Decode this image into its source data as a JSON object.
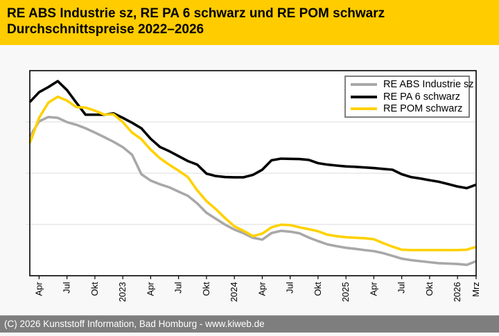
{
  "header": {
    "title_line1": "RE ABS Industrie sz, RE PA 6 schwarz und RE POM schwarz",
    "title_line2": "Durchschnittspreise 2022–2026",
    "background": "#FFCC00",
    "text_color": "#000000"
  },
  "legend": {
    "entries": [
      {
        "label": "RE ABS Industrie sz",
        "color": "#A8A8A8"
      },
      {
        "label": "RE PA 6 schwarz",
        "color": "#000000"
      },
      {
        "label": "RE POM schwarz",
        "color": "#FFD100"
      }
    ]
  },
  "chart_data": {
    "type": "line",
    "title": "RE ABS Industrie sz, RE PA 6 schwarz und RE POM schwarz — Durchschnittspreise 2022–2026",
    "x_start_month": "Mrz 2022",
    "x_end_month": "Mrz 2026",
    "x_interval": "monthly",
    "x_tick_labels": [
      "Apr",
      "Jul",
      "Okt",
      "2023",
      "Apr",
      "Jul",
      "Okt",
      "2024",
      "Apr",
      "Jul",
      "Okt",
      "2025",
      "Apr",
      "Jul",
      "Okt",
      "2026",
      "Mrz"
    ],
    "x_tick_month_indices": [
      1,
      4,
      7,
      10,
      13,
      16,
      19,
      22,
      25,
      28,
      31,
      34,
      37,
      40,
      43,
      46,
      48
    ],
    "y_axis_labels_visible": false,
    "y_scale_note": "relative scale 0-100 (source chart shows no y-axis value labels)",
    "ylim": [
      0,
      100
    ],
    "gridlines_rel": [
      25,
      50,
      75
    ],
    "grid_color": "#DBDBDB",
    "plot_background": "#FFFFFF",
    "series": [
      {
        "name": "RE ABS Industrie sz",
        "color": "#A8A8A8",
        "values": [
          67.8,
          75.3,
          77.4,
          77.0,
          74.9,
          73.6,
          71.9,
          69.8,
          67.6,
          65.3,
          62.7,
          59.0,
          49.5,
          46.4,
          44.6,
          43.1,
          41.0,
          39.0,
          35.3,
          30.7,
          27.8,
          24.9,
          22.5,
          20.7,
          18.5,
          17.6,
          20.8,
          21.9,
          21.5,
          20.7,
          18.6,
          16.9,
          15.3,
          14.4,
          13.6,
          13.1,
          12.5,
          12.0,
          11.0,
          9.7,
          8.3,
          7.6,
          7.1,
          6.6,
          6.1,
          5.9,
          5.7,
          5.3,
          7.1
        ]
      },
      {
        "name": "RE PA 6 schwarz",
        "color": "#000000",
        "values": [
          84.7,
          89.5,
          92.0,
          94.9,
          90.5,
          84.4,
          78.5,
          78.5,
          78.5,
          79.2,
          77.0,
          74.6,
          71.9,
          66.8,
          62.8,
          60.7,
          58.3,
          55.9,
          54.2,
          49.8,
          48.6,
          48.1,
          48.0,
          48.0,
          49.2,
          51.7,
          56.3,
          57.1,
          57.0,
          56.9,
          56.5,
          54.9,
          54.2,
          53.7,
          53.3,
          53.1,
          52.8,
          52.5,
          52.1,
          51.7,
          49.5,
          48.1,
          47.4,
          46.6,
          45.8,
          44.7,
          43.5,
          42.7,
          44.4
        ]
      },
      {
        "name": "RE POM schwarz",
        "color": "#FFD100",
        "values": [
          64.7,
          77.0,
          84.4,
          87.3,
          85.4,
          82.2,
          82.0,
          80.5,
          78.6,
          78.7,
          74.9,
          69.8,
          66.6,
          61.5,
          57.3,
          54.1,
          51.2,
          48.1,
          41.7,
          36.4,
          32.5,
          28.1,
          24.1,
          21.9,
          19.3,
          20.5,
          23.6,
          24.9,
          24.7,
          23.6,
          22.7,
          21.7,
          20.0,
          19.3,
          18.8,
          18.5,
          18.3,
          17.8,
          15.9,
          14.2,
          12.7,
          12.5,
          12.5,
          12.5,
          12.5,
          12.5,
          12.5,
          12.7,
          14.1
        ]
      }
    ]
  },
  "footer": {
    "text": "(C) 2026 Kunststoff Information, Bad Homburg - www.kiweb.de",
    "background": "#7E7E7E",
    "text_color": "#FFFFFF"
  }
}
